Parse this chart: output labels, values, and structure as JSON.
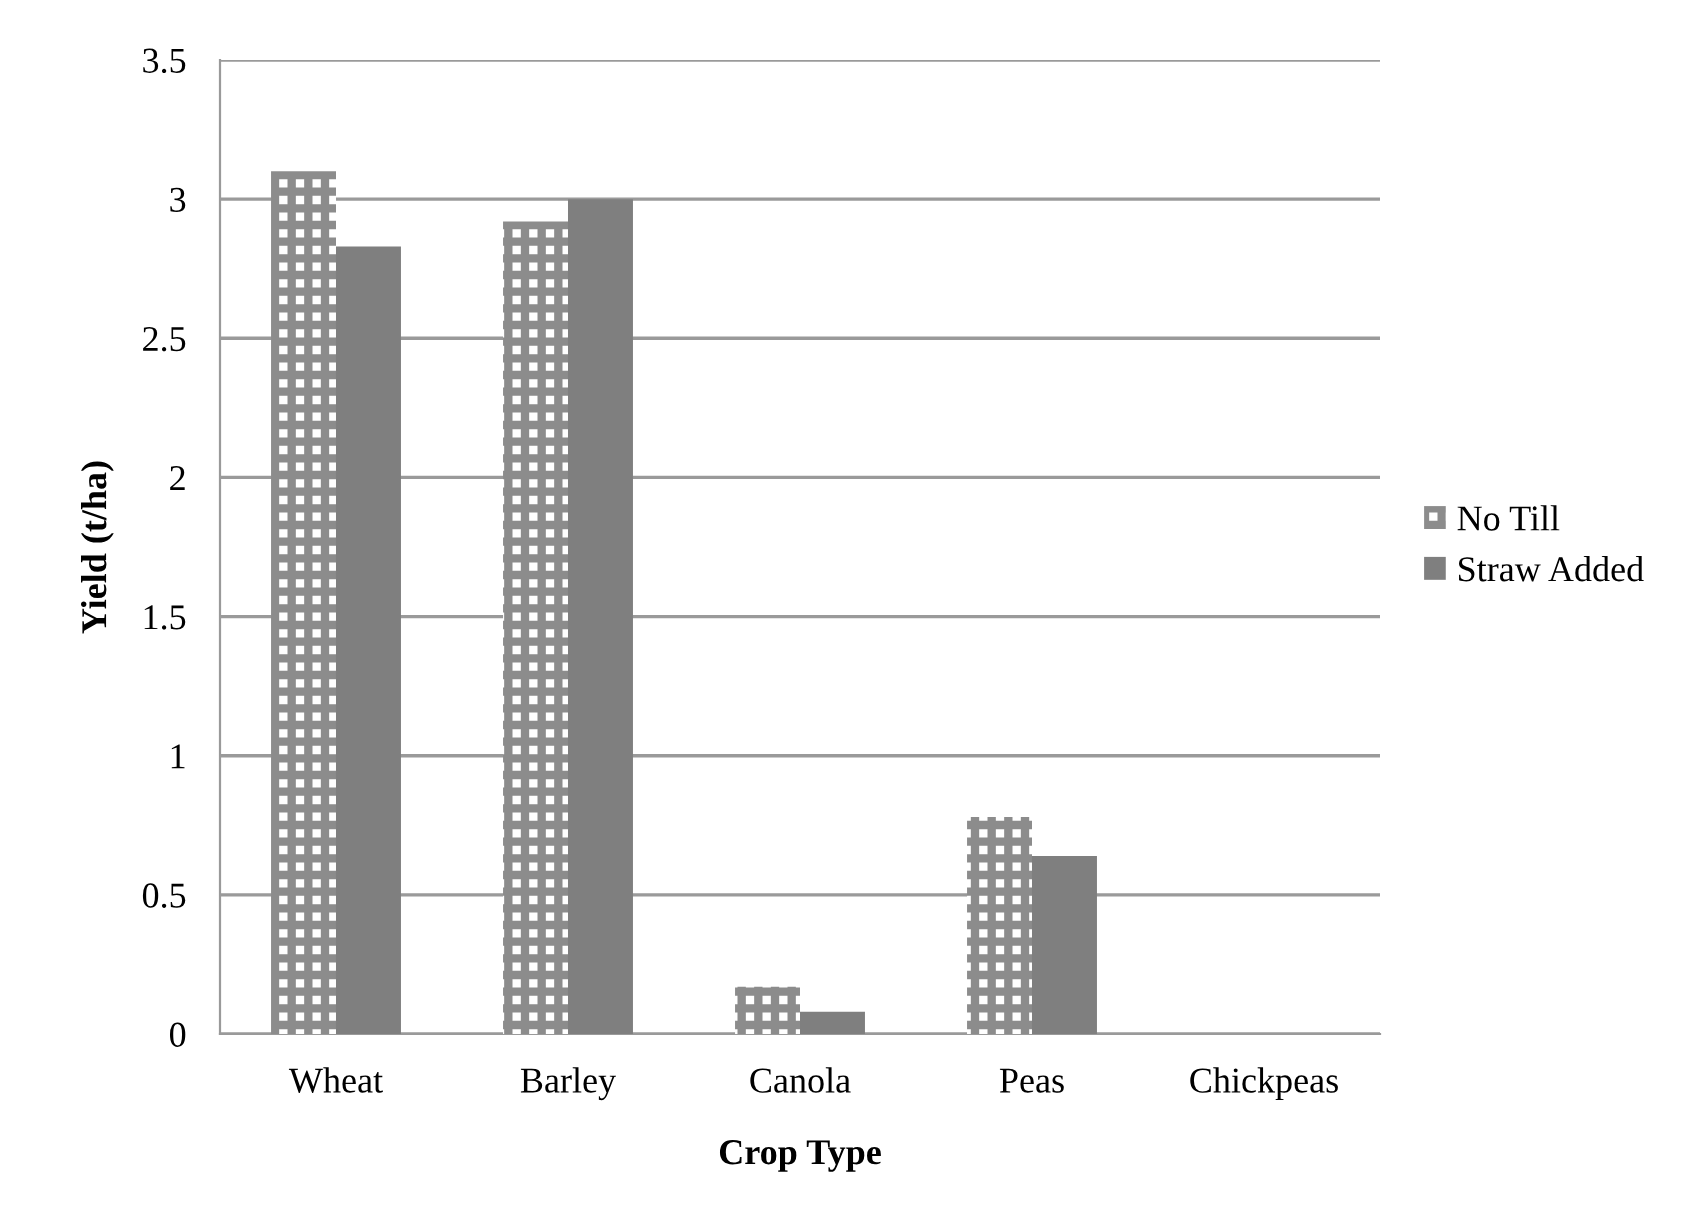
{
  "chart_data": {
    "type": "bar",
    "xlabel": "Crop Type",
    "ylabel": "Yield (t/ha)",
    "categories": [
      "Wheat",
      "Barley",
      "Canola",
      "Peas",
      "Chickpeas"
    ],
    "series": [
      {
        "name": "No Till",
        "color": "#8c8c8c",
        "values": [
          3.1,
          2.92,
          0.17,
          0.78,
          0
        ]
      },
      {
        "name": "Straw Added",
        "color": "#7f7f7f",
        "values": [
          2.83,
          3.0,
          0.08,
          0.64,
          0
        ]
      }
    ],
    "ylim": [
      0,
      3.5
    ],
    "yticks": [
      0,
      0.5,
      1,
      1.5,
      2,
      2.5,
      3,
      3.5
    ],
    "grid": "y",
    "legend": "right"
  }
}
